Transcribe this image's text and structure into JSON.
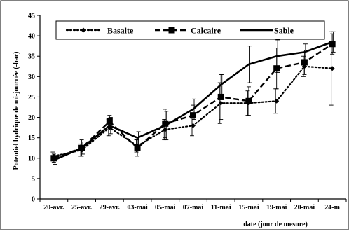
{
  "chart_data": {
    "type": "line",
    "title": "",
    "xlabel": "date (jour de mesure)",
    "ylabel": "Potentiel hydrique de mi-journée  (-bar)",
    "categories": [
      "20-avr.",
      "25-avr.",
      "29-avr.",
      "03-mai",
      "05-mai",
      "07-mai",
      "11-mai",
      "15-mai",
      "19-mai",
      "20-mai",
      "24-m"
    ],
    "ylim": [
      0,
      45
    ],
    "yticks": [
      "0",
      "5",
      "10",
      "15",
      "20",
      "25",
      "30",
      "35",
      "40",
      "45"
    ],
    "grid": false,
    "legend_position": "top",
    "series": [
      {
        "name": "Basalte",
        "style": "dotted",
        "marker": "diamond",
        "color": "#000000",
        "values": [
          10.5,
          12.0,
          17.5,
          13.0,
          17.0,
          18.0,
          23.5,
          23.5,
          24.0,
          32.5,
          32.0
        ],
        "errors": [
          1.0,
          1.5,
          2.0,
          1.5,
          2.5,
          2.5,
          5.0,
          3.0,
          3.0,
          2.5,
          9.0
        ]
      },
      {
        "name": "Calcaire",
        "style": "dashed",
        "marker": "square",
        "color": "#000000",
        "values": [
          10.0,
          12.5,
          19.0,
          12.5,
          18.5,
          20.5,
          25.0,
          24.0,
          32.0,
          33.5,
          38.0
        ],
        "errors": [
          1.0,
          2.0,
          1.5,
          2.0,
          3.5,
          2.5,
          5.5,
          3.5,
          5.0,
          3.0,
          2.5
        ]
      },
      {
        "name": "Sable",
        "style": "solid",
        "marker": "none",
        "color": "#000000",
        "values": [
          9.5,
          12.5,
          18.0,
          15.0,
          18.0,
          22.0,
          28.0,
          33.0,
          35.0,
          36.0,
          38.5
        ],
        "errors": [
          1.0,
          1.5,
          2.0,
          1.5,
          3.5,
          2.5,
          2.5,
          4.5,
          4.0,
          2.0,
          2.5
        ]
      }
    ]
  }
}
